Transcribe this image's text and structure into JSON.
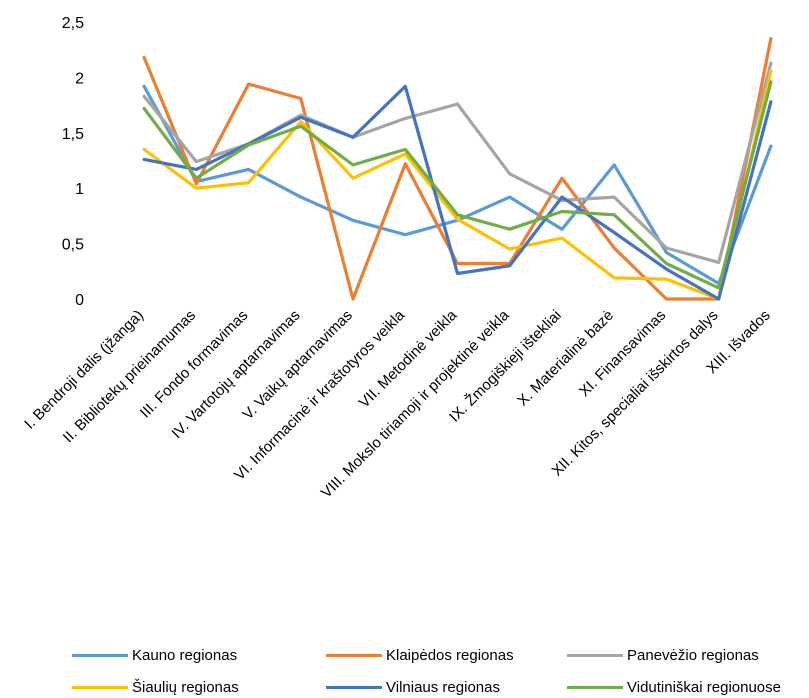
{
  "chart_data": {
    "type": "line",
    "title": "",
    "xlabel": "",
    "ylabel": "",
    "ylim": [
      0,
      2.5
    ],
    "yticks": [
      "0",
      "0,5",
      "1",
      "1,5",
      "2",
      "2,5"
    ],
    "grid": false,
    "legend_position": "bottom",
    "categories": [
      "I. Bendroji dalis (įžanga)",
      "II. Bibliotekų prieinamumas",
      "III. Fondo formavimas",
      "IV. Vartotojų aptarnavimas",
      "V. Vaikų aptarnavimas",
      "VI. Informacinė ir kraštotyros veikla",
      "VII. Metodinė veikla",
      "VIII. Mokslo tiriamoji ir projektinė veikla",
      "IX. Žmogiškieji ištekliai",
      "X. Materialinė bazė",
      "XI. Finansavimas",
      "XII. Kitos, specialiai išskirtos dalys",
      "XIII. Išvados"
    ],
    "series": [
      {
        "name": "Kauno regionas",
        "color": "#5B9BD5",
        "values": [
          1.92,
          1.06,
          1.17,
          0.92,
          0.71,
          0.58,
          0.71,
          0.92,
          0.63,
          1.21,
          0.42,
          0.14,
          1.38
        ]
      },
      {
        "name": "Klaipėdos regionas",
        "color": "#ED7D31",
        "values": [
          2.18,
          1.04,
          1.94,
          1.81,
          0.0,
          1.22,
          0.32,
          0.32,
          1.09,
          0.46,
          0.0,
          0.0,
          2.35
        ]
      },
      {
        "name": "Panevėžio regionas",
        "color": "#A5A5A5",
        "values": [
          1.83,
          1.24,
          1.4,
          1.66,
          1.46,
          1.63,
          1.76,
          1.13,
          0.89,
          0.92,
          0.46,
          0.33,
          2.13
        ]
      },
      {
        "name": "Šiaulių regionas",
        "color": "#FFC000",
        "values": [
          1.35,
          1.0,
          1.05,
          1.6,
          1.09,
          1.31,
          0.72,
          0.45,
          0.55,
          0.19,
          0.18,
          0.0,
          2.06
        ]
      },
      {
        "name": "Vilniaus regionas",
        "color": "#4472C4",
        "values": [
          1.26,
          1.17,
          1.4,
          1.64,
          1.46,
          1.92,
          0.23,
          0.3,
          0.92,
          0.6,
          0.27,
          0.0,
          1.78
        ]
      },
      {
        "name": "Vidutiniškai regionuose",
        "color": "#70AD47",
        "values": [
          1.72,
          1.09,
          1.39,
          1.56,
          1.21,
          1.35,
          0.76,
          0.63,
          0.79,
          0.76,
          0.32,
          0.1,
          1.96
        ]
      }
    ]
  }
}
